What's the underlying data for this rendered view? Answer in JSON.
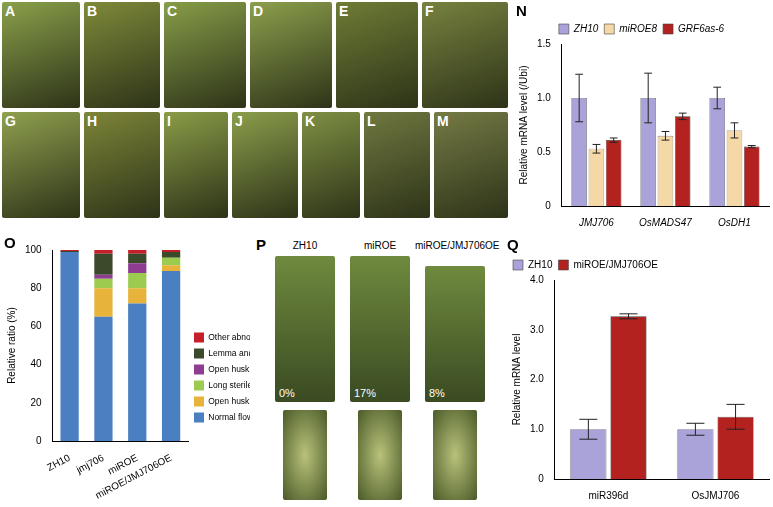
{
  "image_panels": [
    {
      "label": "A"
    },
    {
      "label": "B"
    },
    {
      "label": "C"
    },
    {
      "label": "D"
    },
    {
      "label": "E"
    },
    {
      "label": "F"
    },
    {
      "label": "G"
    },
    {
      "label": "H"
    },
    {
      "label": "I"
    },
    {
      "label": "J"
    },
    {
      "label": "K"
    },
    {
      "label": "L"
    },
    {
      "label": "M"
    }
  ],
  "photo_panel_P": {
    "label": "P",
    "columns": [
      "ZH10",
      "miROE",
      "miROE/JMJ706OE"
    ],
    "percentages": [
      "0%",
      "17%",
      "8%"
    ]
  },
  "chart_data": [
    {
      "type": "bar",
      "title": "N",
      "ylabel": "Relative mRNA level (/Ubi)",
      "categories": [
        "JMJ706",
        "OsMADS47",
        "OsDH1"
      ],
      "series": [
        {
          "name": "ZH10",
          "color": "#aaa3d9",
          "values": [
            1.0,
            1.0,
            1.0
          ],
          "errors": [
            0.22,
            0.23,
            0.1
          ]
        },
        {
          "name": "miROE8",
          "color": "#f4d9a6",
          "values": [
            0.53,
            0.65,
            0.7
          ],
          "errors": [
            0.04,
            0.04,
            0.07
          ]
        },
        {
          "name": "GRF6as-6",
          "color": "#b3221f",
          "values": [
            0.61,
            0.83,
            0.55
          ],
          "errors": [
            0.02,
            0.03,
            0.01
          ]
        }
      ],
      "ylim": [
        0,
        1.5
      ],
      "yticks": [
        0,
        {
          "value": 0.5,
          "label": "0.5"
        },
        {
          "value": 1,
          "label": "1.0"
        },
        {
          "value": 1.5,
          "label": "1.5"
        }
      ],
      "grid": false,
      "legend": "top"
    },
    {
      "type": "bar",
      "title": "O",
      "ylabel": "Relative ratio (%)",
      "stacked": true,
      "categories": [
        "ZH10",
        "jmj706",
        "miROE",
        "miROE/JMJ706OE"
      ],
      "series": [
        {
          "name": "Normal flower",
          "color": "#4a7fc1",
          "values": [
            99,
            65,
            72,
            89
          ]
        },
        {
          "name": "Open husk",
          "color": "#e8b33a",
          "values": [
            0,
            15,
            8,
            3
          ]
        },
        {
          "name": "Long sterile lemma",
          "color": "#9ccc4f",
          "values": [
            0,
            5,
            8,
            4
          ]
        },
        {
          "name": "Open husk and long sterile lemma",
          "color": "#8e3d92",
          "values": [
            0,
            2,
            5,
            0
          ]
        },
        {
          "name": "Lemma and/or palea missing",
          "color": "#3b4a2a",
          "values": [
            0.5,
            11,
            5,
            3
          ]
        },
        {
          "name": "Other abnormal flower",
          "color": "#c5202a",
          "values": [
            0.5,
            2,
            2,
            1
          ]
        }
      ],
      "ylim": [
        0,
        100
      ],
      "yticks": [
        0,
        20,
        40,
        60,
        80,
        100
      ],
      "grid": false,
      "legend": "right"
    },
    {
      "type": "bar",
      "title": "Q",
      "ylabel": "Relative mRNA level",
      "categories": [
        "miR396d",
        "OsJMJ706"
      ],
      "series": [
        {
          "name": "ZH10",
          "color": "#aaa3d9",
          "values": [
            1.0,
            1.0
          ],
          "errors": [
            0.2,
            0.12
          ]
        },
        {
          "name": "miROE/JMJ706OE",
          "color": "#b3221f",
          "values": [
            3.27,
            1.25
          ],
          "errors": [
            0.05,
            0.25
          ]
        }
      ],
      "ylim": [
        0,
        4
      ],
      "yticks": [
        0,
        {
          "value": 1,
          "label": "1.0"
        },
        {
          "value": 2,
          "label": "2.0"
        },
        {
          "value": 3,
          "label": "3.0"
        },
        {
          "value": 4,
          "label": "4.0"
        }
      ],
      "grid": false,
      "legend": "top-left"
    }
  ]
}
